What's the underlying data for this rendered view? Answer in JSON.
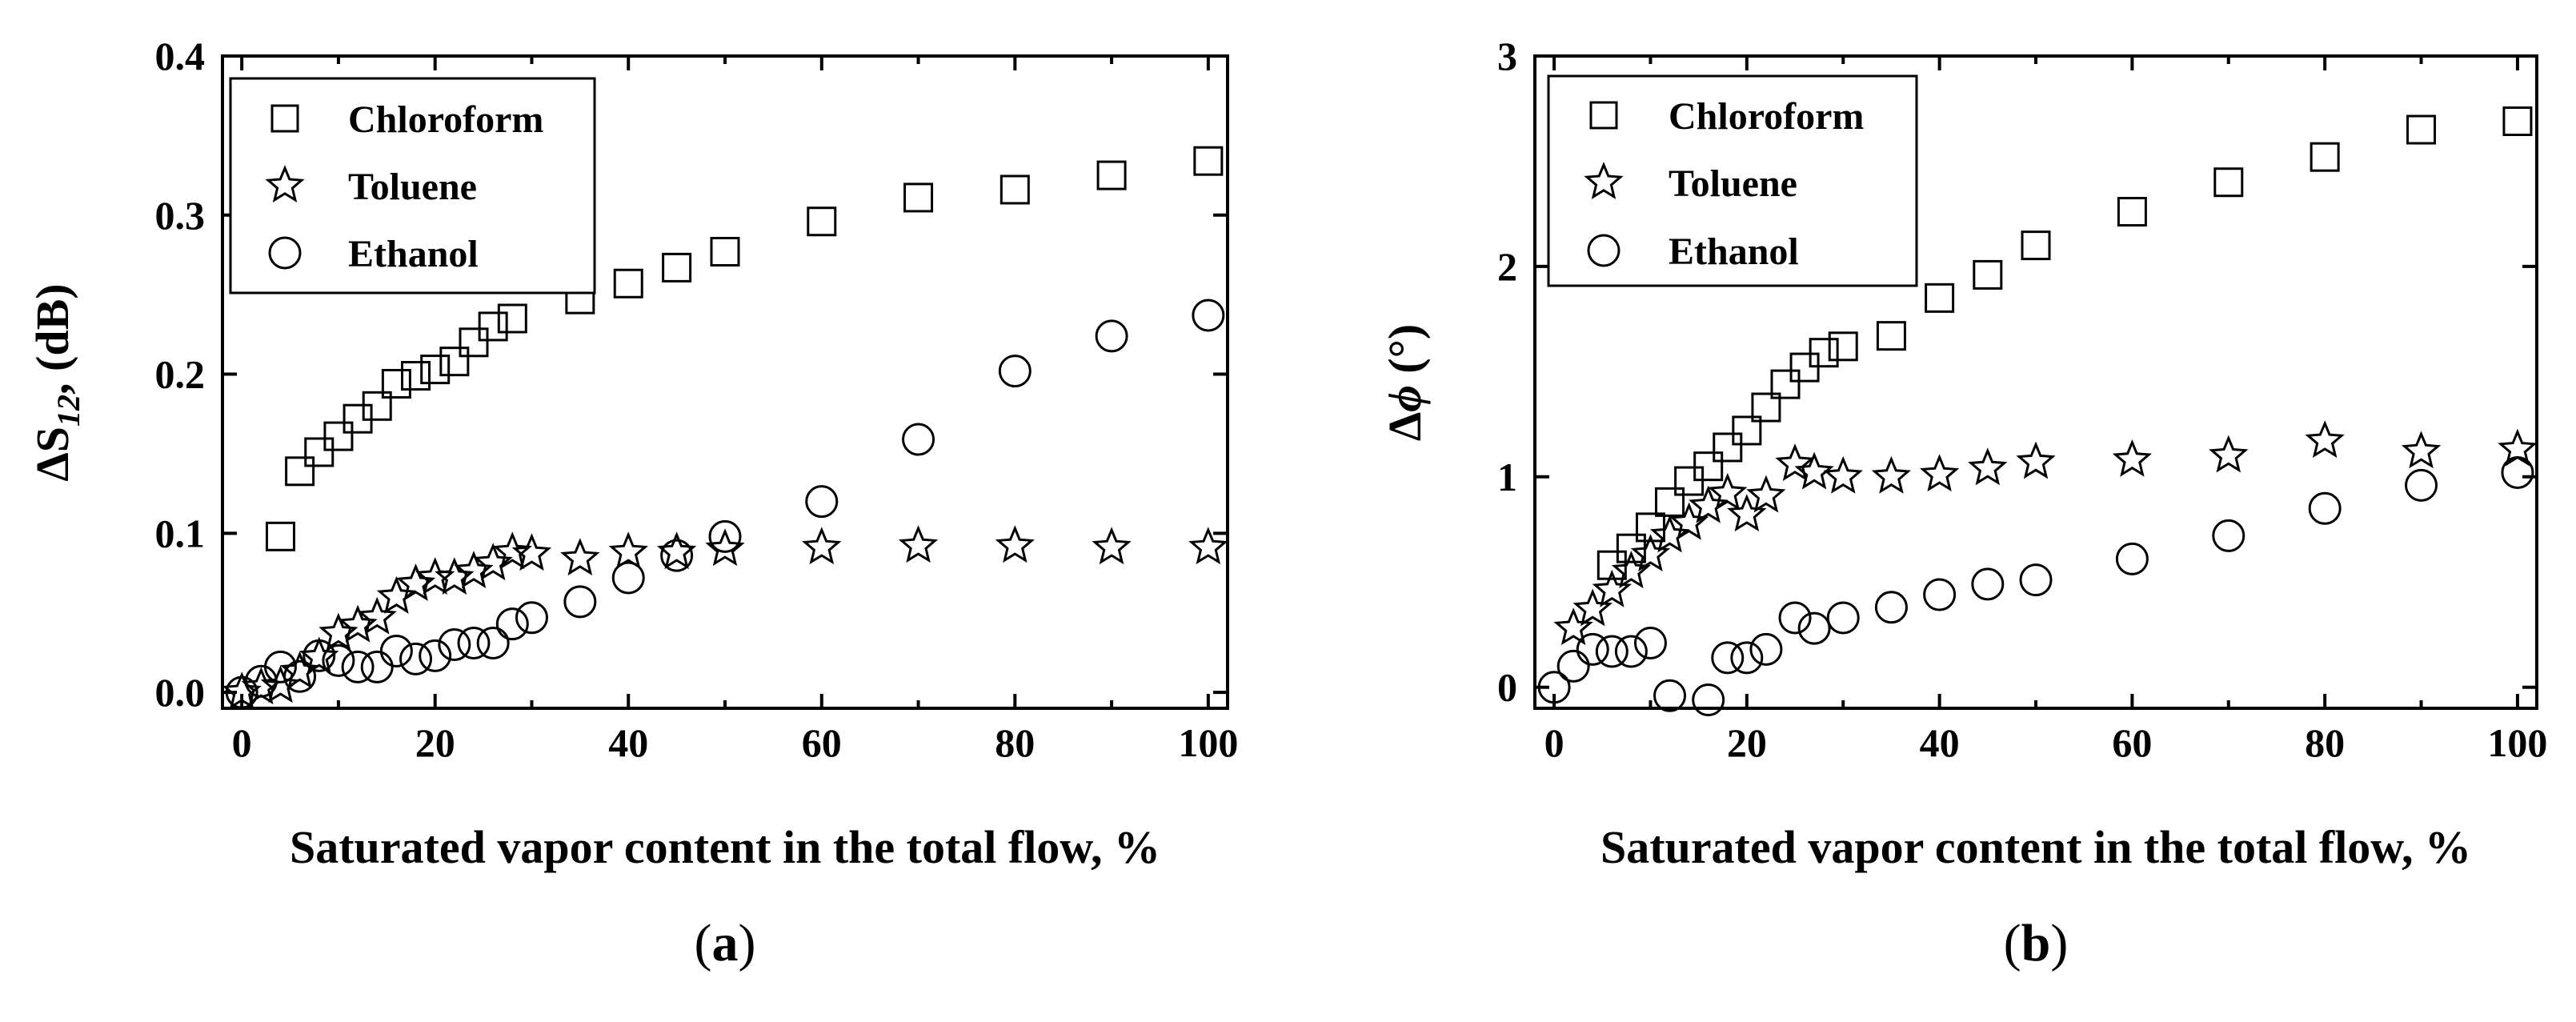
{
  "chart_data": [
    {
      "type": "scatter",
      "panel_label": "a",
      "xlabel": "Saturated vapor content in the total flow, %",
      "ylabel": {
        "prefix": "ΔS",
        "sub": "12",
        "suffix": ", (dB)"
      },
      "xlim": [
        -2,
        102
      ],
      "ylim": [
        -0.01,
        0.4
      ],
      "xticks": [
        "0",
        "20",
        "40",
        "60",
        "80",
        "100"
      ],
      "yticks": [
        "0.0",
        "0.1",
        "0.2",
        "0.3",
        "0.4"
      ],
      "grid": false,
      "legend_position": "top-left",
      "series": [
        {
          "name": "Chloroform",
          "marker": "square",
          "x": [
            4,
            6,
            8,
            10,
            12,
            14,
            16,
            18,
            20,
            22,
            24,
            26,
            28,
            35,
            40,
            45,
            50,
            60,
            70,
            80,
            90,
            100
          ],
          "y": [
            0.098,
            0.139,
            0.151,
            0.161,
            0.172,
            0.18,
            0.194,
            0.199,
            0.203,
            0.208,
            0.22,
            0.23,
            0.235,
            0.247,
            0.257,
            0.267,
            0.277,
            0.296,
            0.311,
            0.316,
            0.325,
            0.334
          ]
        },
        {
          "name": "Toluene",
          "marker": "star",
          "x": [
            0,
            2,
            4,
            6,
            8,
            10,
            12,
            14,
            16,
            18,
            20,
            22,
            24,
            26,
            28,
            30,
            35,
            40,
            45,
            50,
            60,
            70,
            80,
            90,
            100
          ],
          "y": [
            0.0,
            0.003,
            0.004,
            0.013,
            0.022,
            0.037,
            0.042,
            0.047,
            0.06,
            0.068,
            0.072,
            0.072,
            0.076,
            0.081,
            0.088,
            0.087,
            0.084,
            0.088,
            0.088,
            0.09,
            0.091,
            0.092,
            0.092,
            0.091,
            0.091
          ]
        },
        {
          "name": "Ethanol",
          "marker": "circle",
          "x": [
            0,
            2,
            4,
            6,
            8,
            10,
            12,
            14,
            16,
            18,
            20,
            22,
            24,
            26,
            28,
            30,
            35,
            40,
            45,
            50,
            60,
            70,
            80,
            90,
            100
          ],
          "y": [
            0.0,
            0.007,
            0.016,
            0.01,
            0.023,
            0.02,
            0.016,
            0.016,
            0.026,
            0.021,
            0.023,
            0.03,
            0.031,
            0.031,
            0.043,
            0.047,
            0.057,
            0.072,
            0.086,
            0.098,
            0.12,
            0.159,
            0.202,
            0.224,
            0.237
          ]
        }
      ]
    },
    {
      "type": "scatter",
      "panel_label": "b",
      "xlabel": "Saturated vapor content in the total flow, %",
      "ylabel": {
        "prefix": "Δ",
        "italic": "ϕ",
        "suffix": " (°)"
      },
      "xlim": [
        -2,
        102
      ],
      "ylim": [
        -0.1,
        3
      ],
      "xticks": [
        "0",
        "20",
        "40",
        "60",
        "80",
        "100"
      ],
      "yticks": [
        "0",
        "1",
        "2",
        "3"
      ],
      "grid": false,
      "legend_position": "top-left",
      "series": [
        {
          "name": "Chloroform",
          "marker": "square",
          "x": [
            6,
            8,
            10,
            12,
            14,
            16,
            18,
            20,
            22,
            24,
            26,
            28,
            30,
            35,
            40,
            45,
            50,
            60,
            70,
            80,
            90,
            100
          ],
          "y": [
            0.58,
            0.66,
            0.76,
            0.88,
            0.98,
            1.05,
            1.14,
            1.22,
            1.33,
            1.44,
            1.52,
            1.59,
            1.62,
            1.67,
            1.85,
            1.96,
            2.1,
            2.26,
            2.4,
            2.52,
            2.65,
            2.69
          ]
        },
        {
          "name": "Toluene",
          "marker": "star",
          "x": [
            2,
            4,
            6,
            8,
            10,
            12,
            14,
            16,
            18,
            20,
            22,
            25,
            27,
            30,
            35,
            40,
            45,
            50,
            60,
            70,
            80,
            90,
            100
          ],
          "y": [
            0.28,
            0.37,
            0.46,
            0.55,
            0.63,
            0.72,
            0.78,
            0.86,
            0.92,
            0.82,
            0.91,
            1.06,
            1.02,
            1.0,
            1.0,
            1.01,
            1.04,
            1.07,
            1.08,
            1.1,
            1.17,
            1.12,
            1.13
          ]
        },
        {
          "name": "Ethanol",
          "marker": "circle",
          "x": [
            0,
            2,
            4,
            6,
            8,
            10,
            12,
            16,
            18,
            20,
            22,
            25,
            27,
            30,
            35,
            40,
            45,
            50,
            60,
            70,
            80,
            90,
            100
          ],
          "y": [
            0.0,
            0.1,
            0.18,
            0.17,
            0.17,
            0.21,
            -0.04,
            -0.06,
            0.14,
            0.14,
            0.18,
            0.33,
            0.28,
            0.33,
            0.38,
            0.44,
            0.49,
            0.51,
            0.61,
            0.72,
            0.85,
            0.96,
            1.02
          ]
        }
      ]
    }
  ]
}
